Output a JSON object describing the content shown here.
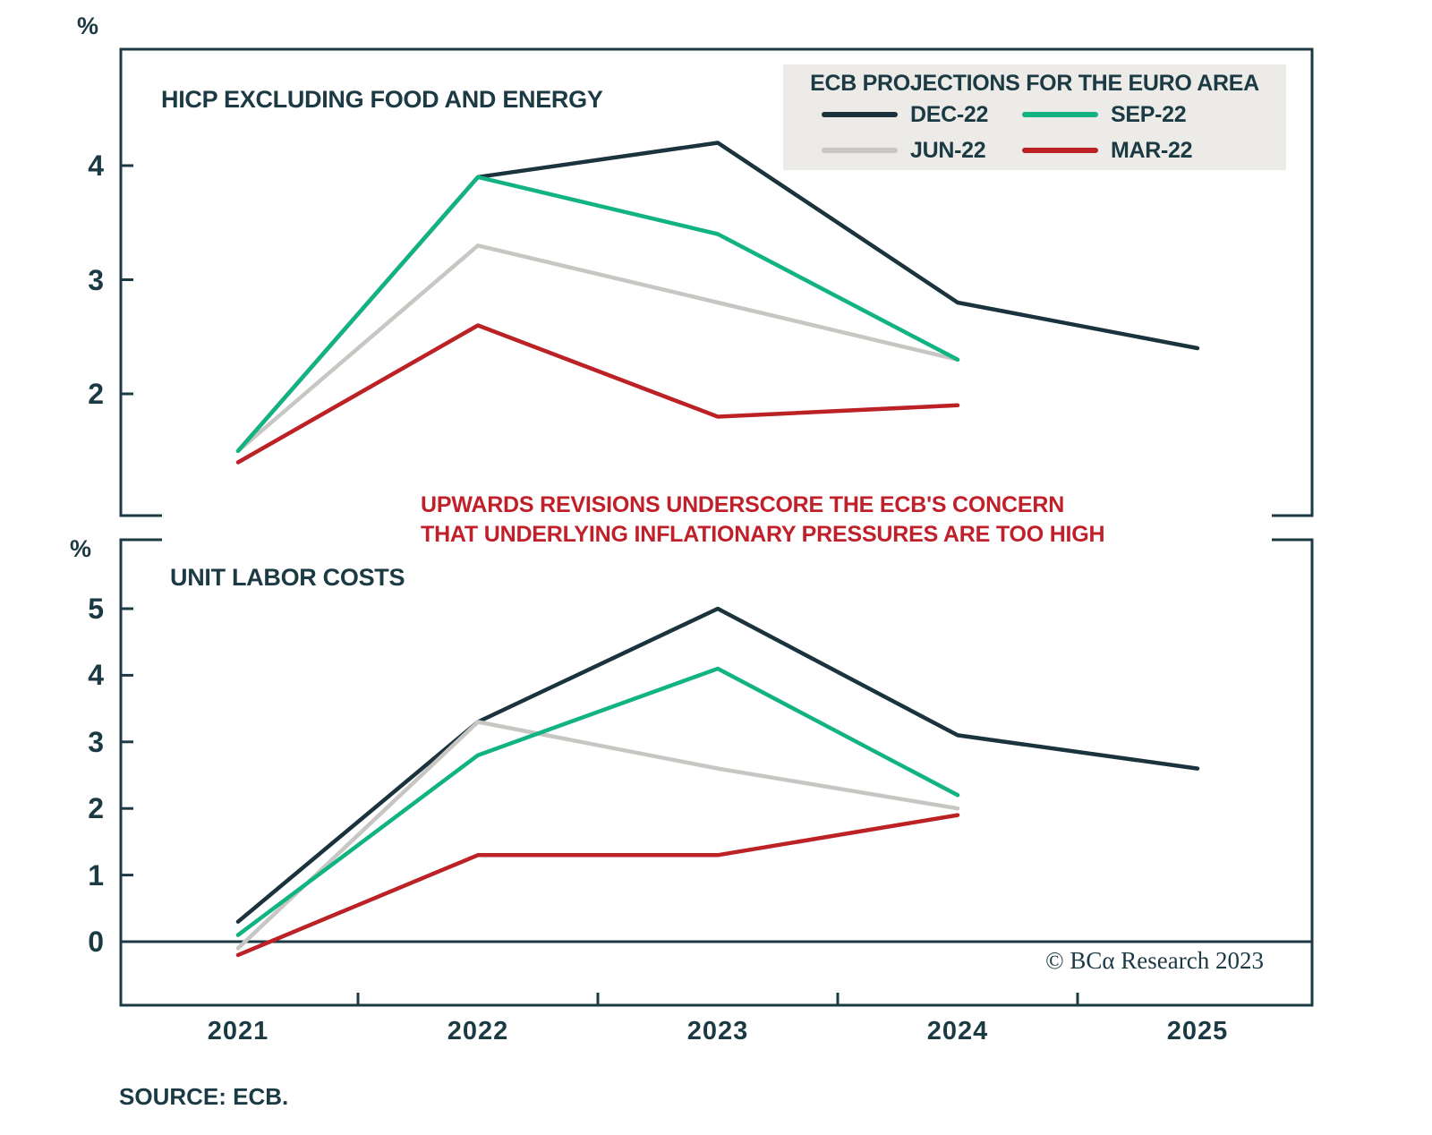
{
  "figure": {
    "ylabel_top": "%",
    "ylabel_bottom": "%",
    "annotation": {
      "line1": "UPWARDS REVISIONS UNDERSCORE THE ECB'S CONCERN",
      "line2": "THAT UNDERLYING INFLATIONARY PRESSURES ARE TOO HIGH",
      "color": "#c0202a"
    },
    "legend": {
      "title": "ECB PROJECTIONS FOR THE EURO AREA",
      "background": "#ecebe7",
      "position": "top-right",
      "items": [
        {
          "label": "DEC-22",
          "color": "#1a333d"
        },
        {
          "label": "SEP-22",
          "color": "#10b381"
        },
        {
          "label": "JUN-22",
          "color": "#c8c6c2"
        },
        {
          "label": "MAR-22",
          "color": "#bb2125"
        }
      ]
    },
    "copyright": "© BCα Research 2023",
    "source_note": "SOURCE: ECB.",
    "axis_color": "#1c3a44"
  },
  "chart_data": [
    {
      "type": "line",
      "title": "HICP EXCLUDING FOOD AND ENERGY",
      "ylabel": "%",
      "x": [
        2021,
        2022,
        2023,
        2024,
        2025
      ],
      "ylim": [
        1,
        5
      ],
      "yticks": [
        2,
        3,
        4
      ],
      "grid": false,
      "series": [
        {
          "name": "DEC-22",
          "color": "#1a333d",
          "values": [
            1.5,
            3.9,
            4.2,
            2.8,
            2.4
          ]
        },
        {
          "name": "SEP-22",
          "color": "#10b381",
          "values": [
            1.5,
            3.9,
            3.4,
            2.3,
            null
          ]
        },
        {
          "name": "JUN-22",
          "color": "#c8c6c2",
          "values": [
            1.5,
            3.3,
            2.8,
            2.3,
            null
          ]
        },
        {
          "name": "MAR-22",
          "color": "#bb2125",
          "values": [
            1.4,
            2.6,
            1.8,
            1.9,
            null
          ]
        }
      ]
    },
    {
      "type": "line",
      "title": "UNIT LABOR COSTS",
      "ylabel": "%",
      "x": [
        2021,
        2022,
        2023,
        2024,
        2025
      ],
      "ylim": [
        -1,
        6
      ],
      "yticks": [
        0,
        1,
        2,
        3,
        4,
        5
      ],
      "zero_line": true,
      "grid": false,
      "series": [
        {
          "name": "DEC-22",
          "color": "#1a333d",
          "values": [
            0.3,
            3.3,
            5.0,
            3.1,
            2.6
          ]
        },
        {
          "name": "SEP-22",
          "color": "#10b381",
          "values": [
            0.1,
            2.8,
            4.1,
            2.2,
            null
          ]
        },
        {
          "name": "JUN-22",
          "color": "#c8c6c2",
          "values": [
            -0.1,
            3.3,
            2.6,
            2.0,
            null
          ]
        },
        {
          "name": "MAR-22",
          "color": "#bb2125",
          "values": [
            -0.2,
            1.3,
            1.3,
            1.9,
            null
          ]
        }
      ]
    }
  ]
}
